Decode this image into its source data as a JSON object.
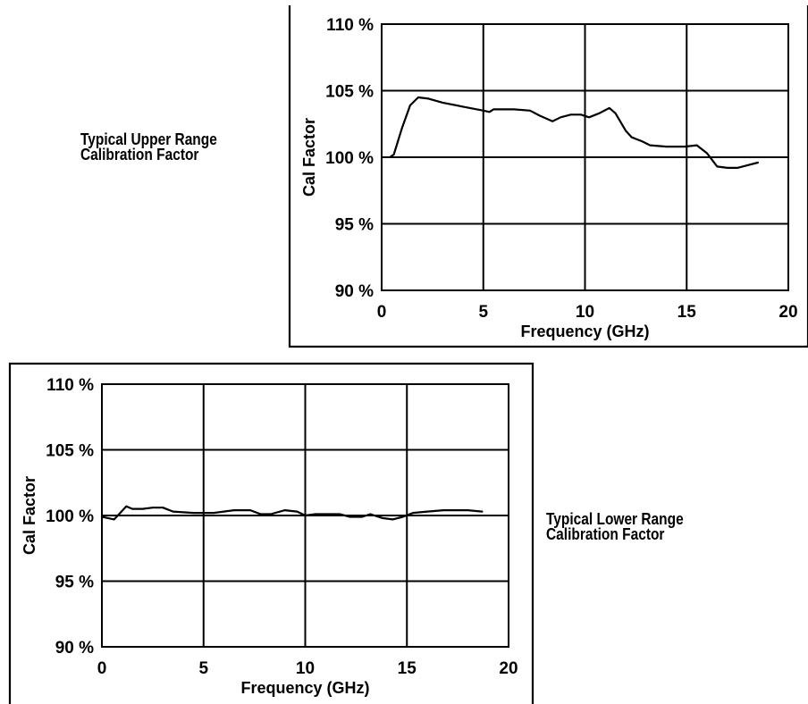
{
  "upper": {
    "caption_line1": "Typical Upper Range",
    "caption_line2": "Calibration Factor"
  },
  "lower": {
    "caption_line1": "Typical Lower Range",
    "caption_line2": "Calibration Factor"
  },
  "chart_data": [
    {
      "type": "line",
      "title": "Typical Upper Range Calibration Factor",
      "xlabel": "Frequency (GHz)",
      "ylabel": "Cal Factor",
      "xlim": [
        0,
        20
      ],
      "ylim": [
        90,
        110
      ],
      "x_ticks": [
        "0",
        "5",
        "10",
        "15",
        "20"
      ],
      "y_ticks": [
        "90 %",
        "95 %",
        "100 %",
        "105 %",
        "110 %"
      ],
      "grid": true,
      "series": [
        {
          "x": [
            0.4,
            0.6,
            1.0,
            1.4,
            1.8,
            2.3,
            3.0,
            4.0,
            5.0,
            5.3,
            5.5,
            6.5,
            7.3,
            7.8,
            8.4,
            8.8,
            9.3,
            9.8,
            10.2,
            10.7,
            11.2,
            11.5,
            12.0,
            12.3,
            12.8,
            13.2,
            14.0,
            14.9,
            15.5,
            16.0,
            16.5,
            17.0,
            17.5,
            18.0,
            18.5
          ],
          "y": [
            100.0,
            100.2,
            102.2,
            103.9,
            104.5,
            104.4,
            104.1,
            103.8,
            103.5,
            103.4,
            103.6,
            103.6,
            103.5,
            103.1,
            102.7,
            103.0,
            103.2,
            103.2,
            103.0,
            103.3,
            103.7,
            103.3,
            102.0,
            101.5,
            101.2,
            100.9,
            100.8,
            100.8,
            100.9,
            100.3,
            99.3,
            99.2,
            99.2,
            99.4,
            99.6
          ]
        }
      ]
    },
    {
      "type": "line",
      "title": "Typical Lower Range Calibration Factor",
      "xlabel": "Frequency (GHz)",
      "ylabel": "Cal Factor",
      "xlim": [
        0,
        20
      ],
      "ylim": [
        90,
        110
      ],
      "x_ticks": [
        "0",
        "5",
        "10",
        "15",
        "20"
      ],
      "y_ticks": [
        "90 %",
        "95 %",
        "100 %",
        "105 %",
        "110 %"
      ],
      "grid": true,
      "series": [
        {
          "x": [
            0,
            0.3,
            0.6,
            0.9,
            1.2,
            1.5,
            2.0,
            2.5,
            3.0,
            3.5,
            4.5,
            5.5,
            6.5,
            7.3,
            7.8,
            8.3,
            9.0,
            9.6,
            10.0,
            10.5,
            11.0,
            11.7,
            12.2,
            12.8,
            13.2,
            13.8,
            14.3,
            14.8,
            15.3,
            16.0,
            16.8,
            17.5,
            18.0,
            18.7
          ],
          "y": [
            99.9,
            99.8,
            99.7,
            100.2,
            100.7,
            100.5,
            100.5,
            100.6,
            100.6,
            100.3,
            100.2,
            100.2,
            100.4,
            100.4,
            100.1,
            100.1,
            100.4,
            100.3,
            100.0,
            100.1,
            100.1,
            100.1,
            99.9,
            99.9,
            100.1,
            99.8,
            99.7,
            99.9,
            100.2,
            100.3,
            100.4,
            100.4,
            100.4,
            100.3
          ]
        }
      ]
    }
  ]
}
